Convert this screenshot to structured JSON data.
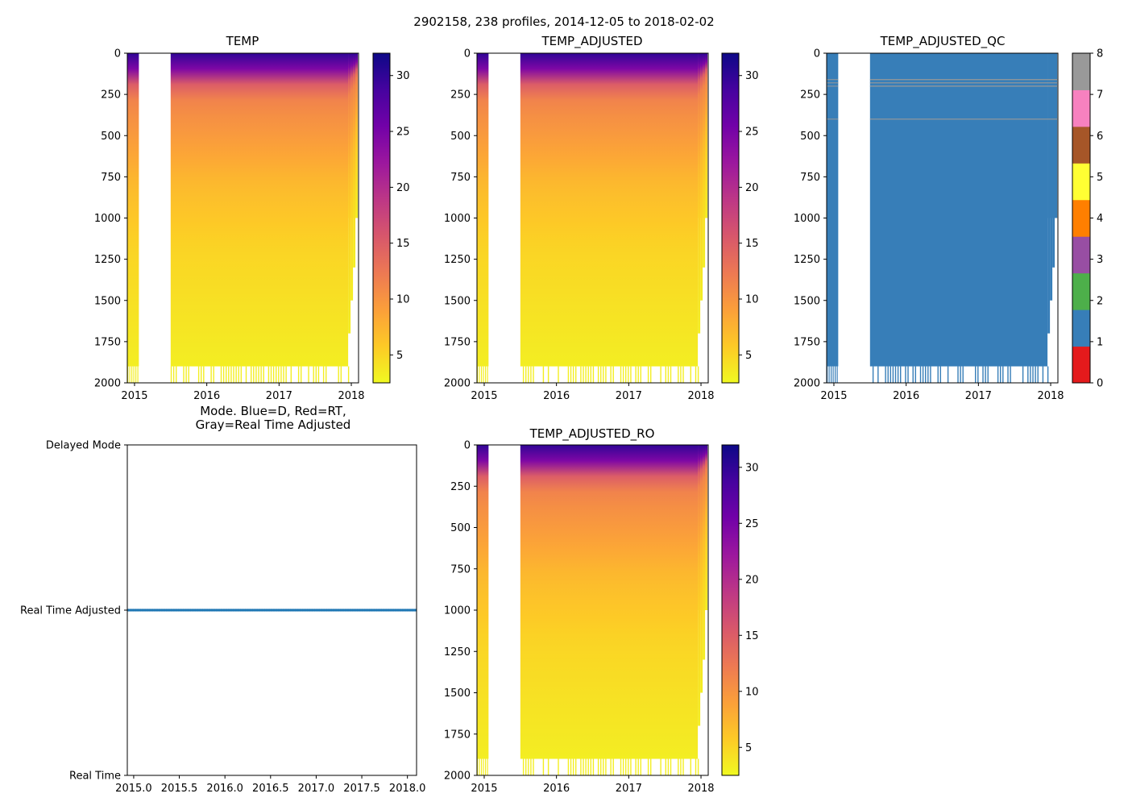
{
  "figure": {
    "suptitle": "2902158, 238 profiles, 2014-12-05 to 2018-02-02"
  },
  "colors": {
    "qc": [
      "#e41a1c",
      "#377eb8",
      "#4daf4a",
      "#984ea3",
      "#ff7f00",
      "#ffff33",
      "#a65628",
      "#f781bf",
      "#999999"
    ],
    "mode_line": "#1f77b4",
    "plasma": [
      "#f0f921",
      "#fdca26",
      "#fb9f3a",
      "#ed7953",
      "#d8576b",
      "#bd3786",
      "#9c179e",
      "#7201a8",
      "#46039f",
      "#0d0887"
    ]
  },
  "chart_data": [
    {
      "id": "temp",
      "type": "heatmap",
      "title": "TEMP",
      "x_ticks": [
        "2015",
        "2016",
        "2017",
        "2018"
      ],
      "x_tick_values": [
        2015,
        2016,
        2017,
        2018
      ],
      "xlim": [
        2014.9,
        2018.1
      ],
      "y_ticks": [
        "0",
        "250",
        "500",
        "750",
        "1000",
        "1250",
        "1500",
        "1750",
        "2000"
      ],
      "y_tick_values": [
        0,
        250,
        500,
        750,
        1000,
        1250,
        1500,
        1750,
        2000
      ],
      "ylim": [
        2000,
        0
      ],
      "colorbar": {
        "range": [
          2.5,
          32
        ],
        "ticks": [
          "5",
          "10",
          "15",
          "20",
          "25",
          "30"
        ],
        "tick_values": [
          5,
          10,
          15,
          20,
          25,
          30
        ],
        "cmap": "plasma_r"
      },
      "data_gap": [
        2015.06,
        2015.5
      ],
      "end_date": 2018.09,
      "temperature_profile": {
        "depth": [
          0,
          60,
          120,
          200,
          300,
          500,
          800,
          1200,
          1600,
          1900
        ],
        "temp": [
          30,
          28,
          22,
          14,
          11,
          9.5,
          7,
          5,
          4,
          3.3
        ]
      },
      "bottom_of_data_depth": 1900
    },
    {
      "id": "temp_adjusted",
      "type": "heatmap",
      "title": "TEMP_ADJUSTED",
      "x_ticks": [
        "2015",
        "2016",
        "2017",
        "2018"
      ],
      "x_tick_values": [
        2015,
        2016,
        2017,
        2018
      ],
      "xlim": [
        2014.9,
        2018.1
      ],
      "y_ticks": [
        "0",
        "250",
        "500",
        "750",
        "1000",
        "1250",
        "1500",
        "1750",
        "2000"
      ],
      "y_tick_values": [
        0,
        250,
        500,
        750,
        1000,
        1250,
        1500,
        1750,
        2000
      ],
      "ylim": [
        2000,
        0
      ],
      "colorbar": {
        "range": [
          2.5,
          32
        ],
        "ticks": [
          "5",
          "10",
          "15",
          "20",
          "25",
          "30"
        ],
        "tick_values": [
          5,
          10,
          15,
          20,
          25,
          30
        ],
        "cmap": "plasma_r"
      },
      "data_gap": [
        2015.06,
        2015.5
      ],
      "end_date": 2018.09,
      "temperature_profile": {
        "depth": [
          0,
          60,
          120,
          200,
          300,
          500,
          800,
          1200,
          1600,
          1900
        ],
        "temp": [
          30,
          28,
          22,
          14,
          11,
          9.5,
          7,
          5,
          4,
          3.3
        ]
      },
      "bottom_of_data_depth": 1900
    },
    {
      "id": "temp_adjusted_qc",
      "type": "heatmap",
      "title": "TEMP_ADJUSTED_QC",
      "x_ticks": [
        "2015",
        "2016",
        "2017",
        "2018"
      ],
      "x_tick_values": [
        2015,
        2016,
        2017,
        2018
      ],
      "xlim": [
        2014.9,
        2018.1
      ],
      "y_ticks": [
        "0",
        "250",
        "500",
        "750",
        "1000",
        "1250",
        "1500",
        "1750",
        "2000"
      ],
      "y_tick_values": [
        0,
        250,
        500,
        750,
        1000,
        1250,
        1500,
        1750,
        2000
      ],
      "ylim": [
        2000,
        0
      ],
      "colorbar": {
        "range": [
          0,
          8
        ],
        "ticks": [
          "0",
          "1",
          "2",
          "3",
          "4",
          "5",
          "6",
          "7",
          "8"
        ],
        "tick_values": [
          0,
          1,
          2,
          3,
          4,
          5,
          6,
          7,
          8
        ],
        "cmap": "qc"
      },
      "data_gap": [
        2015.06,
        2015.5
      ],
      "end_date": 2018.09,
      "dominant_flag": 1,
      "flag8_depths": [
        160,
        180,
        200,
        400
      ],
      "bottom_of_data_depth": 1900
    },
    {
      "id": "mode",
      "type": "scatter",
      "title_lines": [
        "Mode. Blue=D, Red=RT,",
        "Gray=Real Time Adjusted"
      ],
      "x_ticks": [
        "2015.0",
        "2015.5",
        "2016.0",
        "2016.5",
        "2017.0",
        "2017.5",
        "2018.0"
      ],
      "x_tick_values": [
        2015.0,
        2015.5,
        2016.0,
        2016.5,
        2017.0,
        2017.5,
        2018.0
      ],
      "xlim": [
        2014.93,
        2018.1
      ],
      "y_ticks": [
        "Delayed Mode",
        "Real Time Adjusted",
        "Real Time"
      ],
      "y_tick_values": [
        1,
        0,
        -1
      ],
      "ylim": [
        -1,
        1
      ],
      "series": [
        {
          "name": "profiles",
          "x_range": [
            2014.93,
            2018.09
          ],
          "y": 0,
          "count": 238
        }
      ]
    },
    {
      "id": "temp_adjusted_ro",
      "type": "heatmap",
      "title": "TEMP_ADJUSTED_RO",
      "x_ticks": [
        "2015",
        "2016",
        "2017",
        "2018"
      ],
      "x_tick_values": [
        2015,
        2016,
        2017,
        2018
      ],
      "xlim": [
        2014.9,
        2018.1
      ],
      "y_ticks": [
        "0",
        "250",
        "500",
        "750",
        "1000",
        "1250",
        "1500",
        "1750",
        "2000"
      ],
      "y_tick_values": [
        0,
        250,
        500,
        750,
        1000,
        1250,
        1500,
        1750,
        2000
      ],
      "ylim": [
        2000,
        0
      ],
      "colorbar": {
        "range": [
          2.5,
          32
        ],
        "ticks": [
          "5",
          "10",
          "15",
          "20",
          "25",
          "30"
        ],
        "tick_values": [
          5,
          10,
          15,
          20,
          25,
          30
        ],
        "cmap": "plasma_r"
      },
      "data_gap": [
        2015.06,
        2015.5
      ],
      "end_date": 2018.09,
      "temperature_profile": {
        "depth": [
          0,
          60,
          120,
          200,
          300,
          500,
          800,
          1200,
          1600,
          1900
        ],
        "temp": [
          30,
          28,
          22,
          14,
          11,
          9.5,
          7,
          5,
          4,
          3.3
        ]
      },
      "bottom_of_data_depth": 1900
    }
  ]
}
